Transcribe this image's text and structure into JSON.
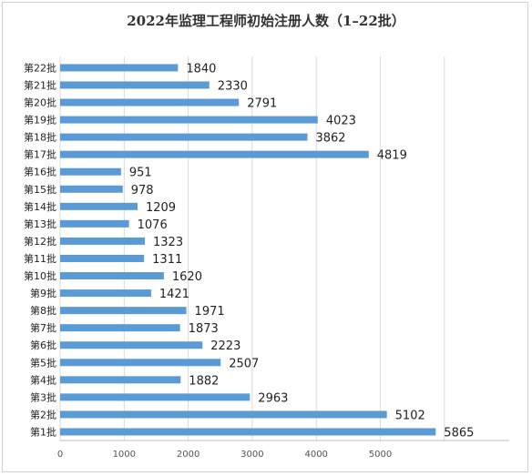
{
  "chart_data": {
    "type": "bar",
    "orientation": "horizontal",
    "title": "2022年监理工程师初始注册人数（1–22批）",
    "categories": [
      "第1批",
      "第2批",
      "第3批",
      "第4批",
      "第5批",
      "第6批",
      "第7批",
      "第8批",
      "第9批",
      "第10批",
      "第11批",
      "第12批",
      "第13批",
      "第14批",
      "第15批",
      "第16批",
      "第17批",
      "第18批",
      "第19批",
      "第20批",
      "第21批",
      "第22批"
    ],
    "values": [
      5865,
      5102,
      2963,
      1882,
      2507,
      2223,
      1873,
      1971,
      1421,
      1620,
      1311,
      1323,
      1076,
      1209,
      978,
      951,
      4819,
      3862,
      4023,
      2791,
      2330,
      1840
    ],
    "xlim": [
      0,
      6000
    ],
    "x_ticks": [
      0,
      1000,
      2000,
      3000,
      4000,
      5000
    ],
    "grid": true,
    "bar_color": "#5b9bd5"
  }
}
